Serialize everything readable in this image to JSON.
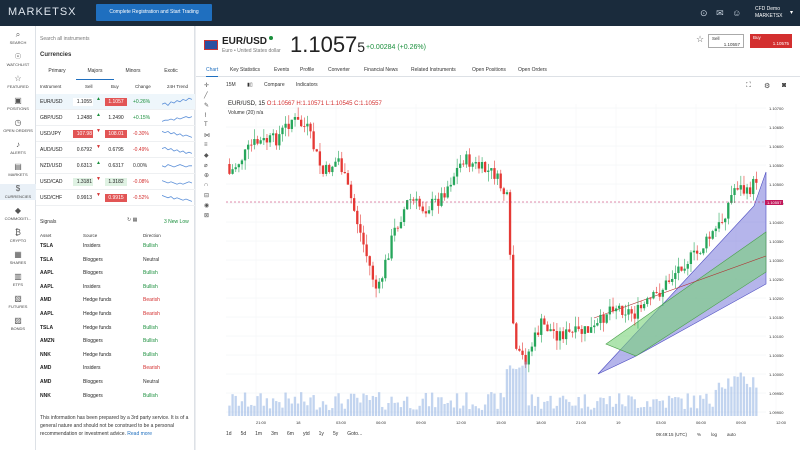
{
  "topbar": {
    "logo": "MARKETSX",
    "register_label": "Complete Registration and Start Trading",
    "user_line1": "CFD Demo",
    "user_line2": "MARKETSX"
  },
  "nav": [
    {
      "icon": "search-icon",
      "glyph": "⌕",
      "label": "SEARCH"
    },
    {
      "icon": "eye-icon",
      "glyph": "☉",
      "label": "WATCHLIST"
    },
    {
      "icon": "star-icon",
      "glyph": "☆",
      "label": "FEATURED"
    },
    {
      "icon": "briefcase-icon",
      "glyph": "▣",
      "label": "POSITIONS"
    },
    {
      "icon": "clock-icon",
      "glyph": "◷",
      "label": "OPEN ORDERS"
    },
    {
      "icon": "bell-icon",
      "glyph": "♪",
      "label": "ALERTS"
    },
    {
      "icon": "chart-icon",
      "glyph": "▤",
      "label": "MARKETS"
    },
    {
      "icon": "currency-icon",
      "glyph": "$",
      "label": "CURRENCIES"
    },
    {
      "icon": "commodities-icon",
      "glyph": "◆",
      "label": "COMMODITI..."
    },
    {
      "icon": "crypto-icon",
      "glyph": "₿",
      "label": "CRYPTO"
    },
    {
      "icon": "shares-icon",
      "glyph": "▦",
      "label": "SHARES"
    },
    {
      "icon": "etf-icon",
      "glyph": "▥",
      "label": "ETFS"
    },
    {
      "icon": "futures-icon",
      "glyph": "▧",
      "label": "FUTURES"
    },
    {
      "icon": "bonds-icon",
      "glyph": "▨",
      "label": "BONDS"
    }
  ],
  "panel": {
    "search_placeholder": "Search all instruments",
    "title": "Currencies",
    "tabs": [
      "Primary",
      "Majors",
      "Minors",
      "Exotic"
    ],
    "columns": [
      "Instrument",
      "Sell",
      "Buy",
      "Change",
      "24H Trend"
    ],
    "rows": [
      {
        "sym": "EUR/USD",
        "sell": "1.1055",
        "sell_sup": "7",
        "buy": "1.1057",
        "buy_sup": "5",
        "chg": "+0.26%",
        "up": true,
        "sell_c": "#ffffff",
        "buy_c": "#e25555"
      },
      {
        "sym": "GBP/USD",
        "sell": "1.2488",
        "sell_sup": "5",
        "buy": "1.2490",
        "buy_sup": "6",
        "chg": "+0.15%",
        "up": true,
        "sell_c": "#ffffff",
        "buy_c": "#ffffff"
      },
      {
        "sym": "USD/JPY",
        "sell": "107.98",
        "sell_sup": "6",
        "buy": "108.01",
        "buy_sup": "5",
        "chg": "-0.30%",
        "up": false,
        "sell_c": "#e25555",
        "buy_c": "#e25555"
      },
      {
        "sym": "AUD/USD",
        "sell": "0.6792",
        "sell_sup": "7",
        "buy": "0.6795",
        "buy_sup": "4",
        "chg": "-0.49%",
        "up": false,
        "sell_c": "#ffffff",
        "buy_c": "#ffffff"
      },
      {
        "sym": "NZD/USD",
        "sell": "0.6313",
        "sell_sup": "6",
        "buy": "0.6317",
        "buy_sup": "1",
        "chg": "0.00%",
        "up": true,
        "sell_c": "#ffffff",
        "buy_c": "#ffffff"
      },
      {
        "sym": "USD/CAD",
        "sell": "1.3181",
        "sell_sup": "1",
        "buy": "1.3182",
        "buy_sup": "6",
        "chg": "-0.08%",
        "up": false,
        "sell_c": "#dff2e3",
        "buy_c": "#dff2e3"
      },
      {
        "sym": "USD/CHF",
        "sell": "0.9913",
        "sell_sup": "1",
        "buy": "0.9915",
        "buy_sup": "3",
        "chg": "-0.52%",
        "up": false,
        "sell_c": "#ffffff",
        "buy_c": "#e25555"
      }
    ],
    "signals_title": "Signals",
    "signals_new": "3 New Low",
    "signal_cols": [
      "Asset",
      "Source",
      "Direction"
    ],
    "signals": [
      {
        "asset": "TSLA",
        "source": "Insiders",
        "dir": "Bullish",
        "c": "#1a8f3c"
      },
      {
        "asset": "TSLA",
        "source": "Bloggers",
        "dir": "Neutral",
        "c": "#333333"
      },
      {
        "asset": "AAPL",
        "source": "Bloggers",
        "dir": "Bullish",
        "c": "#1a8f3c"
      },
      {
        "asset": "AAPL",
        "source": "Insiders",
        "dir": "Bullish",
        "c": "#1a8f3c"
      },
      {
        "asset": "AMD",
        "source": "Hedge funds",
        "dir": "Bearish",
        "c": "#d32f2f"
      },
      {
        "asset": "AAPL",
        "source": "Hedge funds",
        "dir": "Bearish",
        "c": "#d32f2f"
      },
      {
        "asset": "TSLA",
        "source": "Hedge funds",
        "dir": "Bullish",
        "c": "#1a8f3c"
      },
      {
        "asset": "AMZN",
        "source": "Bloggers",
        "dir": "Bullish",
        "c": "#1a8f3c"
      },
      {
        "asset": "NNK",
        "source": "Hedge funds",
        "dir": "Bullish",
        "c": "#1a8f3c"
      },
      {
        "asset": "AMD",
        "source": "Insiders",
        "dir": "Bearish",
        "c": "#d32f2f"
      },
      {
        "asset": "AMD",
        "source": "Bloggers",
        "dir": "Neutral",
        "c": "#333333"
      },
      {
        "asset": "NNK",
        "source": "Bloggers",
        "dir": "Bullish",
        "c": "#1a8f3c"
      }
    ],
    "disclaimer": "This information has been prepared by a 3rd party service. It is of a general nature and should not be construed to be a personal recommendation or investment advice.",
    "read_more": "Read more"
  },
  "main": {
    "pair": "EUR/USD",
    "pair_sub": "Euro • United States dollar",
    "price_main": "1.1057",
    "price_last": "5",
    "change": "+0.00284 (+0.26%)",
    "sell_label": "Sell",
    "sell_value": "1.10557",
    "buy_label": "Buy",
    "buy_value": "1.10575",
    "tabs": [
      "Chart",
      "Key Statistics",
      "Events",
      "Profile",
      "Converter",
      "Financial News",
      "Related Instruments",
      "Open Positions",
      "Open Orders"
    ],
    "toolbar": [
      "15M",
      "Compare",
      "Indicators"
    ],
    "legend": {
      "sym": "EUR/USD, 15",
      "o": "O:1.10567",
      "h": "H:1.10571",
      "l": "L:1.10545",
      "c": "C:1.10557"
    },
    "volume": "Volume (20)",
    "volume_val": "n/a",
    "y_ticks": [
      "1.10700",
      "1.10650",
      "1.10600",
      "1.10550",
      "1.10500",
      "1.10450",
      "1.10400",
      "1.10350",
      "1.10300",
      "1.10250",
      "1.10200",
      "1.10150",
      "1.10100",
      "1.10050",
      "1.10000",
      "1.09950",
      "1.09900"
    ],
    "x_ticks": [
      "21:00",
      "18",
      "03:00",
      "06:00",
      "09:00",
      "12:00",
      "15:00",
      "18:00",
      "21:00",
      "19",
      "03:00",
      "06:00",
      "09:00",
      "12:00"
    ],
    "periods": [
      "1d",
      "5d",
      "1m",
      "3m",
      "6m",
      "ytd",
      "1y",
      "5y",
      "Goto..."
    ],
    "footer": [
      "09:49:15 (UTC)",
      "%",
      "log",
      "auto"
    ],
    "price_tag": "1.10557"
  }
}
